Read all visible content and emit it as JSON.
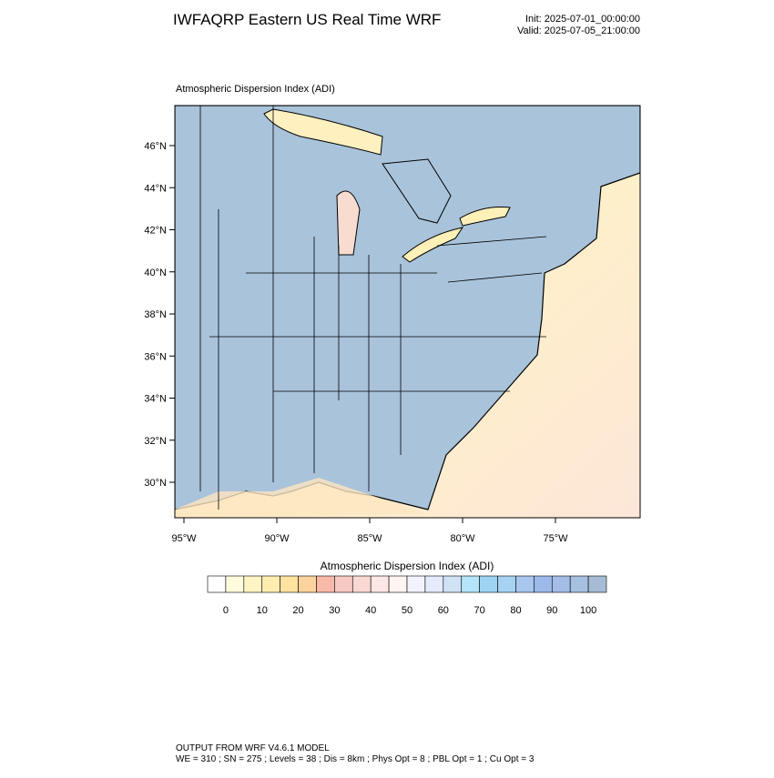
{
  "header": {
    "title": "IWFAQRP Eastern US Real Time WRF",
    "init": "Init: 2025-07-01_00:00:00",
    "valid": "Valid: 2025-07-05_21:00:00"
  },
  "map": {
    "title": "Atmospheric Dispersion Index   (ADI)",
    "lat_labels": [
      "46°N",
      "44°N",
      "42°N",
      "40°N",
      "38°N",
      "36°N",
      "34°N",
      "32°N",
      "30°N"
    ],
    "lon_labels": [
      "95°W",
      "90°W",
      "85°W",
      "80°W",
      "75°W"
    ]
  },
  "colorbar": {
    "title": "Atmospheric Dispersion Index  (ADI)",
    "labels": [
      0,
      10,
      20,
      30,
      40,
      50,
      60,
      70,
      80,
      90,
      100
    ],
    "colors": [
      "#ffffff",
      "#fffbdc",
      "#fff4c4",
      "#ffedb0",
      "#ffe3a0",
      "#fcd39c",
      "#f7b9a8",
      "#f7c9c4",
      "#fad8d4",
      "#fde7e4",
      "#fff4f2",
      "#f3f3ff",
      "#e4ecfb",
      "#cfe2f6",
      "#b3e4fa",
      "#9ed4f2",
      "#a7d2f2",
      "#a8c6ee",
      "#9cb9ea",
      "#a4bde6",
      "#a6c0e0",
      "#a5bcd4"
    ]
  },
  "footer": {
    "line1": "OUTPUT FROM WRF V4.6.1 MODEL",
    "line2": "WE = 310 ; SN = 275 ; Levels = 38 ; Dis = 8km ; Phys Opt = 8 ; PBL Opt = 1 ; Cu Opt = 3"
  }
}
